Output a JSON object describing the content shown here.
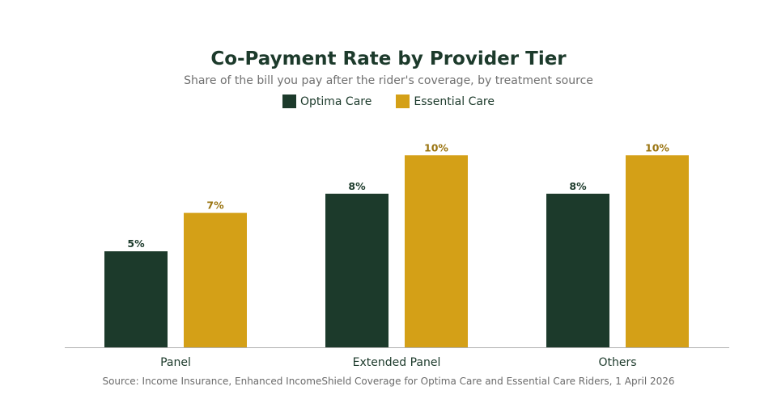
{
  "chart_data": {
    "type": "bar",
    "title": "Co-Payment Rate by Provider Tier",
    "subtitle": "Share of the bill you pay after the rider's coverage, by treatment source",
    "categories": [
      "Panel",
      "Extended Panel",
      "Others"
    ],
    "series": [
      {
        "name": "Optima Care",
        "values": [
          5,
          8,
          8
        ],
        "labels": [
          "5%",
          "8%",
          "8%"
        ],
        "color": "#1c3a2b",
        "label_color": "#1c3a2b"
      },
      {
        "name": "Essential Care",
        "values": [
          7,
          10,
          10
        ],
        "labels": [
          "7%",
          "10%",
          "10%"
        ],
        "color": "#d4a017",
        "label_color": "#9a7410"
      }
    ],
    "ylim": [
      0,
      10.6
    ],
    "grid": false,
    "legend_position": "top-center",
    "source": "Source: Income Insurance, Enhanced IncomeShield Coverage for Optima Care and Essential Care Riders, 1 April 2026"
  },
  "colors": {
    "axis": "#b0b0b0",
    "title": "#1c3a2b"
  }
}
